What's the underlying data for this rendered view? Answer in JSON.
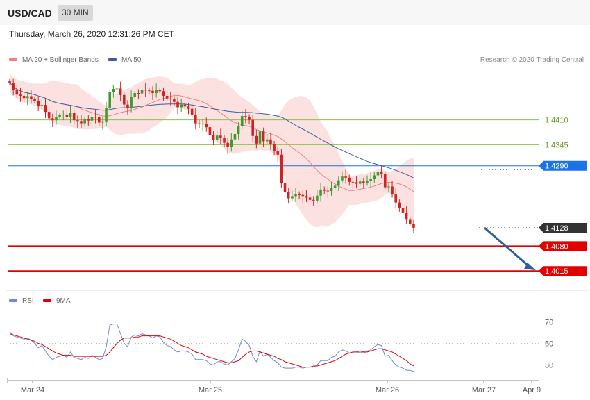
{
  "header": {
    "symbol": "USD/CAD",
    "timeframe": "30 MIN"
  },
  "datetime": "Thursday, March 26, 2020 12:31:26 PM CET",
  "legend": {
    "ma20": {
      "label": "MA 20 + Bollinger Bands",
      "color": "#f08080"
    },
    "ma50": {
      "label": "MA 50",
      "color": "#3a5f9e"
    },
    "rsi": {
      "label": "RSI",
      "color": "#6b8cd6"
    },
    "ma9": {
      "label": "9MA",
      "color": "#e30000"
    }
  },
  "credit": "Research © 2020 Trading Central",
  "chart_data": [
    {
      "type": "candlestick",
      "pair": "USD/CAD",
      "interval": "30 MIN",
      "ylim": [
        1.397,
        1.456
      ],
      "levels": [
        {
          "value": "1.4410",
          "kind": "resistance",
          "color": "#8bc34a"
        },
        {
          "value": "1.4345",
          "kind": "resistance",
          "color": "#8bc34a"
        },
        {
          "value": "1.4290",
          "kind": "pivot",
          "color": "#1a73e8"
        },
        {
          "value": "1.4128",
          "kind": "last",
          "color": "#333333"
        },
        {
          "value": "1.4080",
          "kind": "support",
          "color": "#e30000"
        },
        {
          "value": "1.4015",
          "kind": "support",
          "color": "#e30000"
        }
      ],
      "x_ticks": [
        "Mar 24",
        "Mar 25",
        "Mar 26",
        "Mar 27",
        "Apr 9"
      ],
      "close": [
        1.4507,
        1.4488,
        1.4476,
        1.4473,
        1.4467,
        1.4472,
        1.4464,
        1.4459,
        1.4447,
        1.4449,
        1.4431,
        1.4414,
        1.4409,
        1.4418,
        1.4423,
        1.4424,
        1.4418,
        1.4429,
        1.4409,
        1.4407,
        1.4401,
        1.4413,
        1.4408,
        1.4418,
        1.4417,
        1.4403,
        1.4406,
        1.4441,
        1.4482,
        1.4491,
        1.4492,
        1.4475,
        1.445,
        1.4442,
        1.4471,
        1.448,
        1.4479,
        1.4489,
        1.4487,
        1.4486,
        1.448,
        1.4489,
        1.4485,
        1.4473,
        1.4466,
        1.4464,
        1.4457,
        1.4443,
        1.445,
        1.4445,
        1.4439,
        1.4424,
        1.4401,
        1.4399,
        1.44,
        1.4391,
        1.4371,
        1.4358,
        1.4369,
        1.4363,
        1.435,
        1.4339,
        1.4359,
        1.4373,
        1.4394,
        1.442,
        1.4417,
        1.441,
        1.4368,
        1.4348,
        1.438,
        1.4354,
        1.4359,
        1.4347,
        1.4328,
        1.4319,
        1.4244,
        1.4222,
        1.4205,
        1.4211,
        1.4215,
        1.4214,
        1.4211,
        1.4207,
        1.4201,
        1.4199,
        1.4212,
        1.4228,
        1.4225,
        1.4224,
        1.4232,
        1.4238,
        1.4252,
        1.4262,
        1.4259,
        1.4248,
        1.4247,
        1.4243,
        1.4249,
        1.4246,
        1.4251,
        1.4255,
        1.4265,
        1.4273,
        1.4269,
        1.4234,
        1.4236,
        1.4215,
        1.4194,
        1.418,
        1.4168,
        1.4149,
        1.4138,
        1.4128
      ],
      "open": [
        1.4511,
        1.4507,
        1.4488,
        1.4476,
        1.4473,
        1.4467,
        1.4472,
        1.4464,
        1.4459,
        1.4447,
        1.4449,
        1.4431,
        1.4414,
        1.4409,
        1.4418,
        1.4423,
        1.4424,
        1.4418,
        1.4429,
        1.4409,
        1.4407,
        1.4401,
        1.4413,
        1.4408,
        1.4418,
        1.4417,
        1.4403,
        1.4406,
        1.4441,
        1.4482,
        1.4491,
        1.4492,
        1.4475,
        1.445,
        1.4442,
        1.4471,
        1.448,
        1.4479,
        1.4489,
        1.4487,
        1.4486,
        1.448,
        1.4489,
        1.4485,
        1.4473,
        1.4466,
        1.4464,
        1.4457,
        1.4443,
        1.445,
        1.4445,
        1.4439,
        1.4424,
        1.4401,
        1.4399,
        1.44,
        1.4391,
        1.4371,
        1.4358,
        1.4369,
        1.4363,
        1.435,
        1.4339,
        1.4359,
        1.4373,
        1.4394,
        1.442,
        1.4417,
        1.441,
        1.4368,
        1.4348,
        1.438,
        1.4354,
        1.4359,
        1.4347,
        1.4328,
        1.4319,
        1.4244,
        1.4222,
        1.4205,
        1.4211,
        1.4215,
        1.4214,
        1.4211,
        1.4207,
        1.4201,
        1.4199,
        1.4212,
        1.4228,
        1.4225,
        1.4224,
        1.4232,
        1.4238,
        1.4252,
        1.4262,
        1.4259,
        1.4248,
        1.4247,
        1.4243,
        1.4249,
        1.4246,
        1.4251,
        1.4255,
        1.4265,
        1.4273,
        1.4269,
        1.4234,
        1.4236,
        1.4215,
        1.4194,
        1.418,
        1.4168,
        1.4149,
        1.4138
      ],
      "projection": {
        "from": 1.4128,
        "to": "1.4015"
      }
    },
    {
      "type": "line",
      "title": "",
      "ylim": [
        20,
        80
      ],
      "y_ticks": [
        "70",
        "50",
        "30"
      ],
      "series": [
        {
          "name": "RSI",
          "values": [
            61,
            57,
            56,
            55,
            54,
            55,
            53,
            50,
            46,
            48,
            43,
            38,
            35,
            37,
            38,
            39,
            37,
            42,
            37,
            36,
            35,
            37,
            36,
            39,
            37,
            35,
            36,
            47,
            67,
            68,
            68,
            59,
            50,
            47,
            56,
            58,
            57,
            59,
            58,
            57,
            55,
            57,
            56,
            51,
            48,
            47,
            44,
            42,
            43,
            43,
            42,
            40,
            35,
            35,
            35,
            34,
            31,
            30,
            33,
            33,
            31,
            30,
            33,
            36,
            44,
            54,
            52,
            48,
            38,
            33,
            43,
            38,
            40,
            37,
            34,
            32,
            28,
            27,
            27,
            27,
            28,
            28,
            27,
            28,
            28,
            28,
            30,
            34,
            34,
            34,
            37,
            38,
            42,
            44,
            43,
            41,
            41,
            41,
            42,
            41,
            43,
            44,
            47,
            49,
            48,
            38,
            39,
            34,
            30,
            28,
            27,
            25,
            25,
            24
          ]
        },
        {
          "name": "9MA",
          "values": [
            59,
            58,
            57,
            56,
            55,
            54,
            53,
            52,
            50,
            49,
            47,
            45,
            43,
            41,
            40,
            39,
            39,
            39,
            38,
            38,
            38,
            38,
            38,
            38,
            38,
            38,
            38,
            39,
            42,
            46,
            50,
            53,
            55,
            55,
            55,
            56,
            56,
            57,
            57,
            57,
            57,
            57,
            57,
            56,
            55,
            54,
            52,
            50,
            48,
            47,
            46,
            44,
            42,
            41,
            40,
            38,
            37,
            36,
            35,
            34,
            33,
            32,
            32,
            33,
            34,
            37,
            40,
            42,
            43,
            43,
            42,
            41,
            40,
            39,
            38,
            36,
            35,
            33,
            32,
            31,
            30,
            29,
            28,
            28,
            28,
            29,
            29,
            30,
            31,
            32,
            33,
            34,
            36,
            38,
            40,
            41,
            42,
            42,
            43,
            42,
            42,
            43,
            44,
            45,
            45,
            44,
            43,
            42,
            40,
            38,
            36,
            34,
            31,
            29
          ]
        }
      ]
    }
  ]
}
